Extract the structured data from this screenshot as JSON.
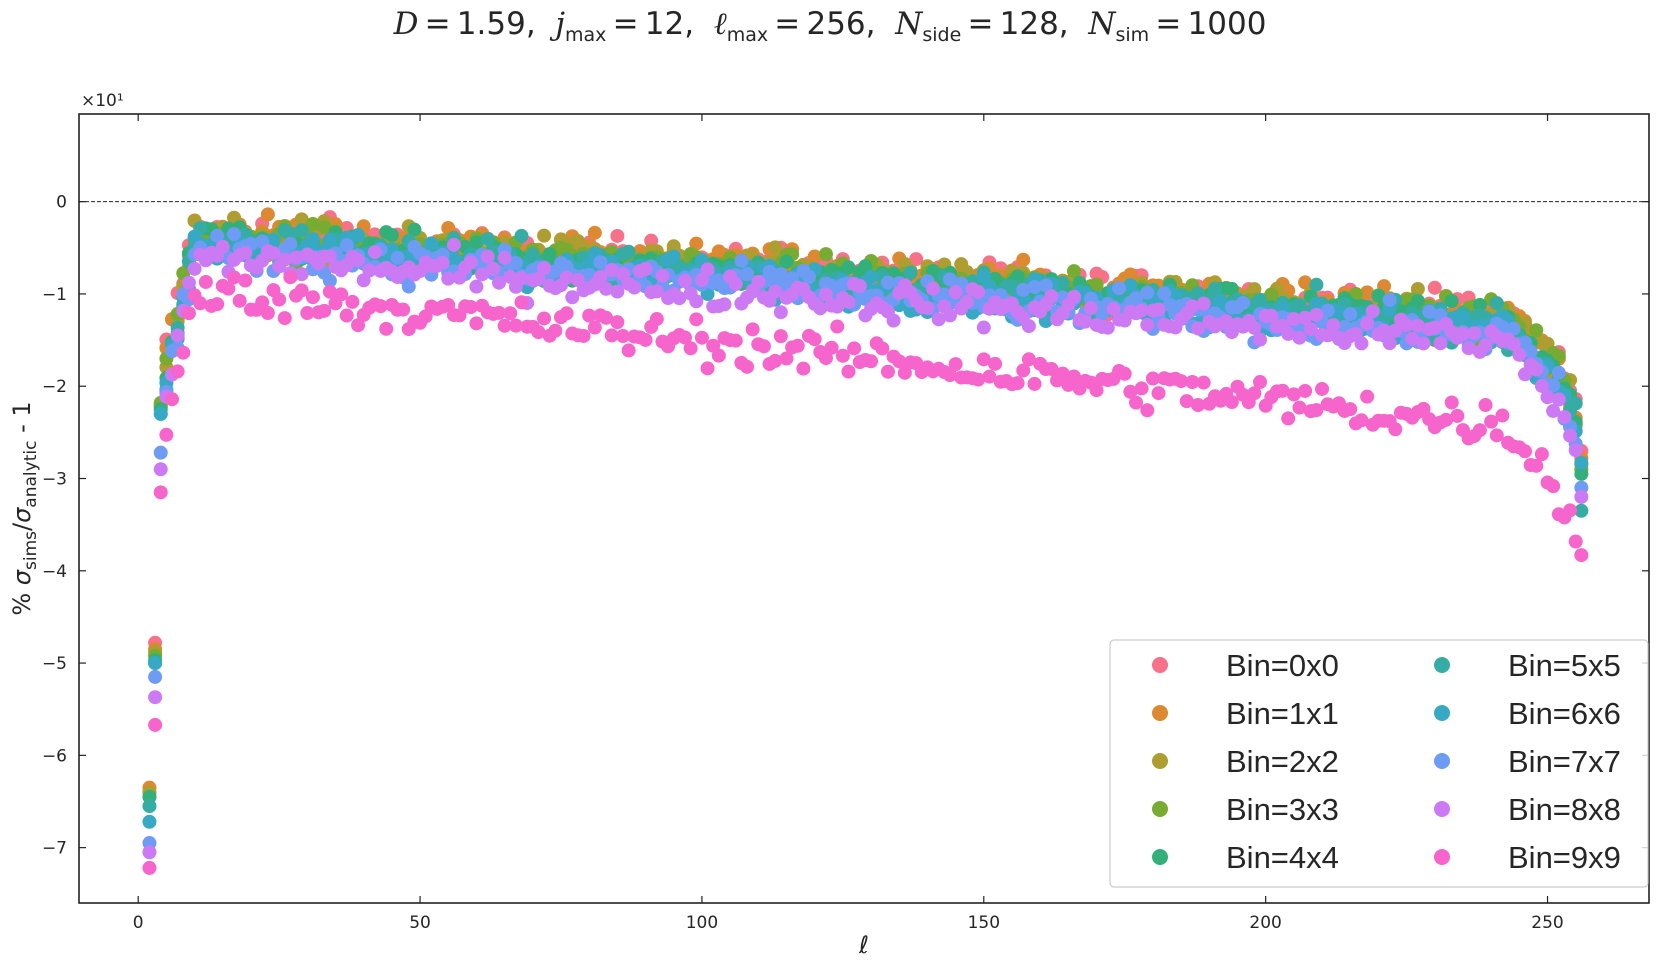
{
  "title": {
    "D_label": "D",
    "D_value": "1.59",
    "j_label": "j",
    "j_sub": "max",
    "j_value": "12",
    "l_label": "ℓ",
    "l_sub": "max",
    "l_value": "256",
    "nside_label": "N",
    "nside_sub": "side",
    "nside_value": "128",
    "nsim_label": "N",
    "nsim_sub": "sim",
    "nsim_value": "1000"
  },
  "chart_data": {
    "type": "scatter",
    "xlabel": "ℓ",
    "ylabel": "% σsims/σanalytic - 1",
    "ylabel_parts": {
      "prefix": "% ",
      "sigma": "σ",
      "sub1": "sims",
      "slash": "/",
      "sub2": "analytic",
      "suffix": " - 1"
    },
    "y_offset_text": "×10¹",
    "y_scale_factor": 10,
    "xlim": [
      -10.5,
      268
    ],
    "ylim": [
      -7.6,
      0.95
    ],
    "xticks": [
      0,
      50,
      100,
      150,
      200,
      250
    ],
    "yticks": [
      -7,
      -6,
      -5,
      -4,
      -3,
      -2,
      -1,
      0
    ],
    "reference_line": {
      "y": 0,
      "style": "dashed"
    },
    "legend": {
      "placement": "lower right",
      "columns": 2
    },
    "grid": false,
    "x_range_per_series": [
      2,
      256
    ],
    "series": [
      {
        "name": "Bin=0x0",
        "color": "#f77189",
        "approx_mean_curve_level": -0.35,
        "start_value_l2": -6.4
      },
      {
        "name": "Bin=1x1",
        "color": "#dc8932",
        "approx_mean_curve_level": -0.35,
        "start_value_l2": -6.35
      },
      {
        "name": "Bin=2x2",
        "color": "#ae9d31",
        "approx_mean_curve_level": -0.38,
        "start_value_l2": -6.4
      },
      {
        "name": "Bin=3x3",
        "color": "#77ab31",
        "approx_mean_curve_level": -0.4,
        "start_value_l2": -6.45
      },
      {
        "name": "Bin=4x4",
        "color": "#33b07a",
        "approx_mean_curve_level": -0.42,
        "start_value_l2": -6.45
      },
      {
        "name": "Bin=5x5",
        "color": "#36ada4",
        "approx_mean_curve_level": -0.45,
        "start_value_l2": -6.55
      },
      {
        "name": "Bin=6x6",
        "color": "#38a9c5",
        "approx_mean_curve_level": -0.5,
        "start_value_l2": -6.72
      },
      {
        "name": "Bin=7x7",
        "color": "#6e9bf4",
        "approx_mean_curve_level": -0.55,
        "start_value_l2": -6.95
      },
      {
        "name": "Bin=8x8",
        "color": "#cc7af4",
        "approx_mean_curve_level": -0.62,
        "start_value_l2": -7.05
      },
      {
        "name": "Bin=9x9",
        "color": "#f565cc",
        "approx_mean_curve_level": -1.0,
        "start_value_l2": -7.22
      }
    ],
    "early_points_l3": [
      -4.78,
      -4.85,
      -4.88,
      -4.92,
      -4.97,
      -5.0,
      -5.0,
      -5.15,
      -5.37,
      -5.67
    ],
    "early_points_l4": [
      -2.22,
      -2.2,
      -2.22,
      -2.18,
      -2.25,
      -2.3,
      -2.3,
      -2.72,
      -2.9,
      -3.15
    ],
    "late_points_l256": [
      -2.7,
      -2.78,
      -2.85,
      -2.9,
      -2.95,
      -3.35,
      -2.83,
      -3.1,
      -3.2,
      -3.83
    ]
  }
}
